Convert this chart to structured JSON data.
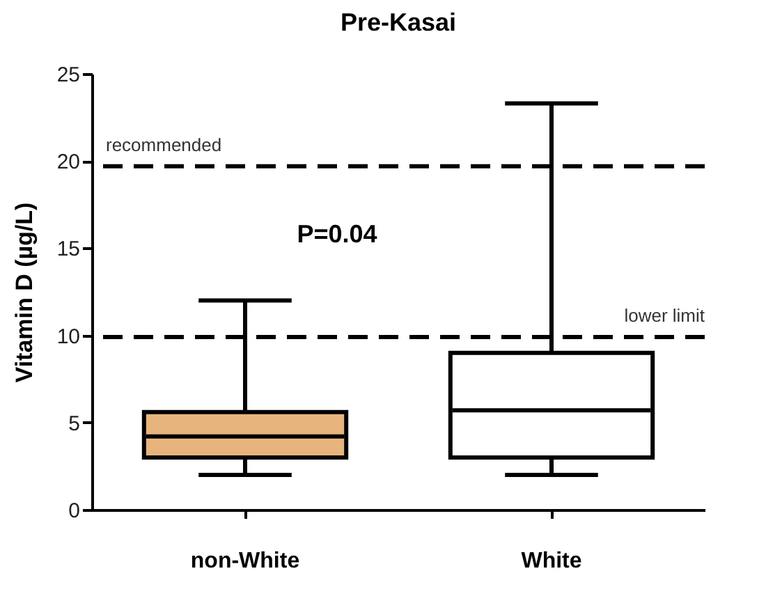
{
  "chart_data": {
    "type": "box",
    "title": "Pre-Kasai",
    "ylabel": "Vitamin D (µg/L)",
    "categories": [
      "non-White",
      "White"
    ],
    "boxes": [
      {
        "low": 2,
        "q1": 3,
        "median": 4.2,
        "q3": 5.6,
        "high": 12
      },
      {
        "low": 2,
        "q1": 3,
        "median": 5.7,
        "q3": 9,
        "high": 23.3
      }
    ],
    "colors": [
      "#e8b47e",
      "#ffffff"
    ],
    "ylim": [
      0,
      25
    ],
    "yticks": [
      0,
      5,
      10,
      15,
      20,
      25
    ],
    "grid": false,
    "ref_lines": [
      {
        "axis": "y",
        "value": 19.7,
        "label": "recommended",
        "line_style": "dashed",
        "color": "#000000"
      },
      {
        "axis": "y",
        "value": 9.9,
        "label": "lower limit",
        "line_style": "dashed",
        "color": "#000000"
      }
    ],
    "annotations": [
      "P=0.04"
    ]
  }
}
